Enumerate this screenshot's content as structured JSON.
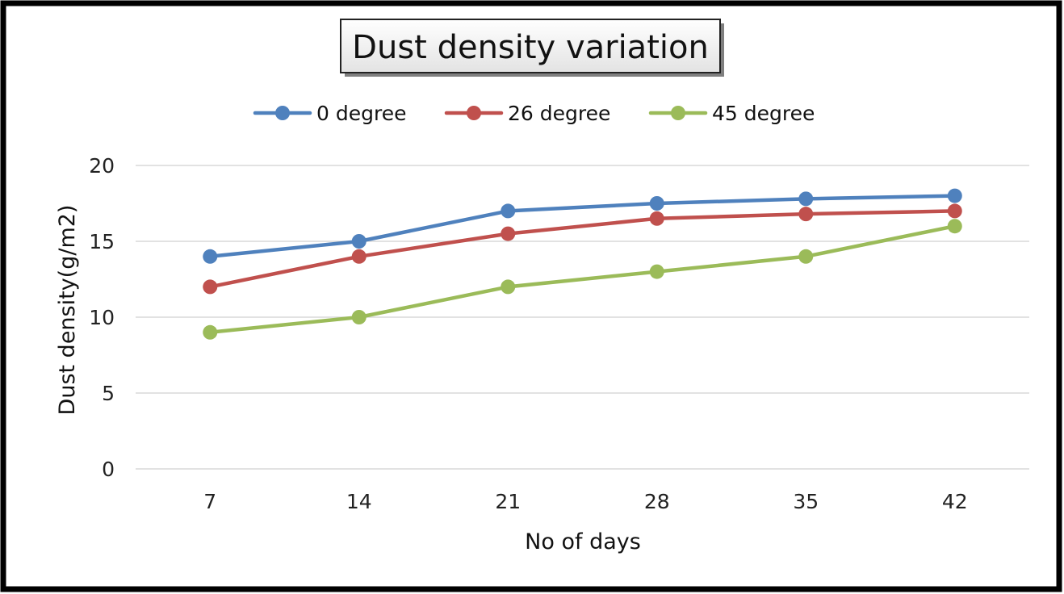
{
  "chart_data": {
    "type": "line",
    "title": "Dust density variation",
    "xlabel": "No of days",
    "ylabel": "Dust density(g/m2)",
    "categories": [
      "7",
      "14",
      "21",
      "28",
      "35",
      "42"
    ],
    "ylim": [
      0,
      20
    ],
    "yticks": [
      "0",
      "5",
      "10",
      "15",
      "20"
    ],
    "grid": true,
    "legend_position": "top",
    "series": [
      {
        "name": "0 degree",
        "color": "#4f81bd",
        "values": [
          14,
          15,
          17,
          17.5,
          17.8,
          18
        ]
      },
      {
        "name": "26 degree",
        "color": "#c0504d",
        "values": [
          12,
          14,
          15.5,
          16.5,
          16.8,
          17
        ]
      },
      {
        "name": "45 degree",
        "color": "#9bbb59",
        "values": [
          9,
          10,
          12,
          13,
          14,
          16
        ]
      }
    ]
  }
}
